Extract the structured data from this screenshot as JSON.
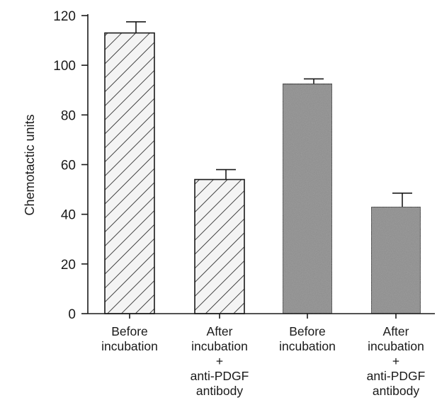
{
  "chart_data": {
    "type": "bar",
    "ylabel": "Chemotactic units",
    "ylim": [
      0,
      120
    ],
    "yticks": [
      0,
      20,
      40,
      60,
      80,
      100,
      120
    ],
    "grid": false,
    "categories": [
      [
        "Before",
        "incubation"
      ],
      [
        "After",
        "incubation",
        "+",
        "anti-PDGF",
        "antibody"
      ],
      [
        "Before",
        "incubation"
      ],
      [
        "After",
        "incubation",
        "+",
        "anti-PDGF",
        "antibody"
      ]
    ],
    "values": [
      113,
      54,
      92.5,
      43
    ],
    "errors": [
      4.5,
      4,
      2,
      5.5
    ],
    "fills": [
      "hatched",
      "hatched",
      "gray",
      "gray"
    ],
    "colors": {
      "gray": "#8a8a8a",
      "hatch_bg": "#f4f4f4",
      "ink": "#1a1a1a"
    }
  }
}
